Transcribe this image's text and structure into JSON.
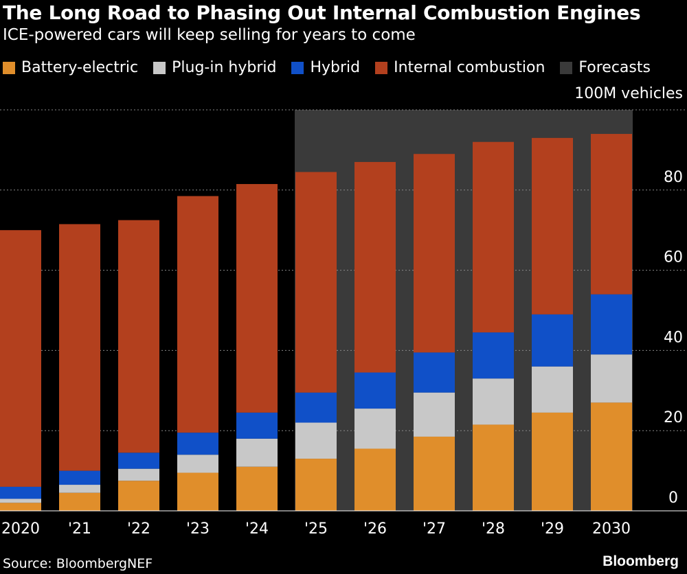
{
  "chart_data": {
    "type": "bar",
    "stacked": true,
    "title": "The Long Road to Phasing Out Internal Combustion Engines",
    "subtitle": "ICE-powered cars will keep selling for years to come",
    "unit_label": "100M vehicles",
    "categories": [
      "2020",
      "'21",
      "'22",
      "'23",
      "'24",
      "'25",
      "'26",
      "'27",
      "'28",
      "'29",
      "2030"
    ],
    "series": [
      {
        "name": "Battery-electric",
        "color": "#e08e2b",
        "values": [
          2,
          4.5,
          7.5,
          9.5,
          11,
          13,
          15.5,
          18.5,
          21.5,
          24.5,
          27
        ]
      },
      {
        "name": "Plug-in hybrid",
        "color": "#c8c8c8",
        "values": [
          1,
          2,
          3,
          4.5,
          7,
          9,
          10,
          11,
          11.5,
          11.5,
          12
        ]
      },
      {
        "name": "Hybrid",
        "color": "#1050c8",
        "values": [
          3,
          3.5,
          4,
          5.5,
          6.5,
          7.5,
          9,
          10,
          11.5,
          13,
          15
        ]
      },
      {
        "name": "Internal combustion",
        "color": "#b3401e",
        "values": [
          64,
          61.5,
          58,
          59,
          57,
          55,
          52.5,
          49.5,
          47.5,
          44,
          40
        ]
      }
    ],
    "forecast": {
      "label": "Forecasts",
      "color": "#3a3a3a",
      "start_category": "'25",
      "end_category": "2030"
    },
    "yaxis": {
      "ticks": [
        0,
        20,
        40,
        60,
        80
      ],
      "ylim": [
        0,
        100
      ],
      "position": "right",
      "grid": true
    },
    "legend_placement": "top-left"
  },
  "source": "Source: BloombergNEF",
  "brand": "Bloomberg"
}
